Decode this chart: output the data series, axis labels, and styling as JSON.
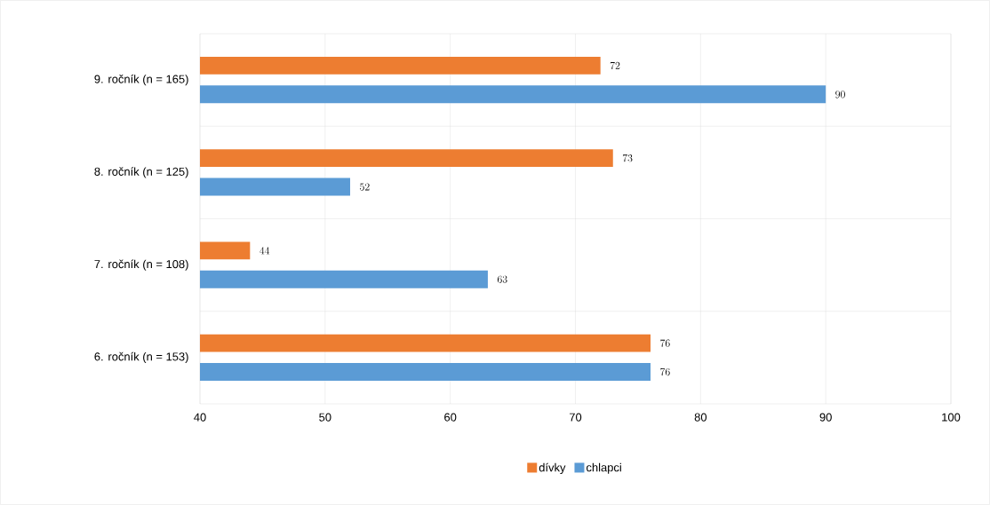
{
  "chart_data": {
    "type": "bar",
    "orientation": "horizontal",
    "categories": [
      "9. ročník (n = 165)",
      "8. ročník (n = 125)",
      "7. ročník (n = 108)",
      "6. ročník (n = 153)"
    ],
    "series": [
      {
        "name": "dívky",
        "color": "#ed7d31",
        "values": [
          72,
          73,
          44,
          76
        ]
      },
      {
        "name": "chlapci",
        "color": "#5b9bd5",
        "values": [
          90,
          52,
          63,
          76
        ]
      }
    ],
    "xlim": [
      40,
      100
    ],
    "xticks": [
      40,
      50,
      60,
      70,
      80,
      90,
      100
    ],
    "grid": true,
    "legend": "bottom",
    "data_labels": true
  }
}
